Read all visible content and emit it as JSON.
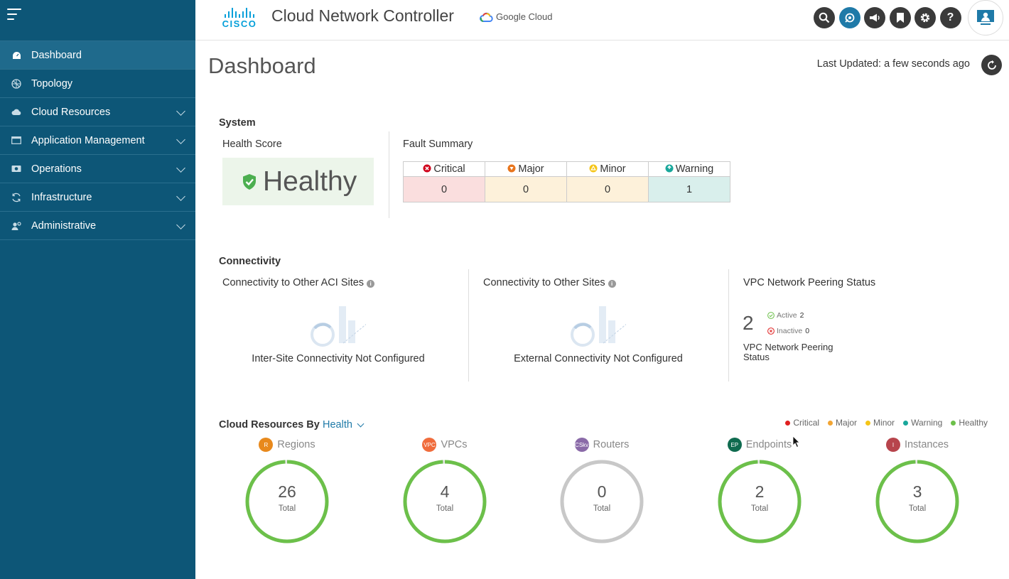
{
  "app": {
    "title": "Cloud Network Controller",
    "vendor": "CISCO",
    "cloud_provider": "Google Cloud"
  },
  "sidebar": {
    "items": [
      {
        "label": "Dashboard",
        "icon": "dashboard-icon",
        "active": true,
        "expandable": false
      },
      {
        "label": "Topology",
        "icon": "topology-icon",
        "active": false,
        "expandable": false
      },
      {
        "label": "Cloud Resources",
        "icon": "cloud-icon",
        "active": false,
        "expandable": true
      },
      {
        "label": "Application Management",
        "icon": "app-management-icon",
        "active": false,
        "expandable": true
      },
      {
        "label": "Operations",
        "icon": "operations-icon",
        "active": false,
        "expandable": true
      },
      {
        "label": "Infrastructure",
        "icon": "infrastructure-icon",
        "active": false,
        "expandable": true
      },
      {
        "label": "Administrative",
        "icon": "admin-icon",
        "active": false,
        "expandable": true
      }
    ]
  },
  "header": {
    "icons": [
      "search-icon",
      "intent-icon",
      "announcements-icon",
      "bookmark-icon",
      "settings-icon",
      "help-icon",
      "user-avatar-icon"
    ],
    "help_glyph": "?"
  },
  "main": {
    "title": "Dashboard",
    "last_updated": "Last Updated: a few seconds ago"
  },
  "system": {
    "heading": "System",
    "health_label": "Health Score",
    "health_value": "Healthy",
    "fault_label": "Fault Summary",
    "faults": [
      {
        "label": "Critical",
        "value": "0",
        "color": "#d0021b",
        "bg": "#fadede"
      },
      {
        "label": "Major",
        "value": "0",
        "color": "#e8741c",
        "bg": "#fdf1da"
      },
      {
        "label": "Minor",
        "value": "0",
        "color": "#f5c518",
        "bg": "#fdf1da"
      },
      {
        "label": "Warning",
        "value": "1",
        "color": "#19a79b",
        "bg": "#d9efec"
      }
    ]
  },
  "connectivity": {
    "heading": "Connectivity",
    "aci_label": "Connectivity to Other ACI Sites",
    "aci_empty": "Inter-Site Connectivity Not Configured",
    "other_label": "Connectivity to Other Sites",
    "other_empty": "External Connectivity Not Configured",
    "vpc_label": "VPC Network Peering Status",
    "vpc_total": "2",
    "vpc_active_label": "Active",
    "vpc_active_value": "2",
    "vpc_inactive_label": "Inactive",
    "vpc_inactive_value": "0",
    "vpc_caption": "VPC Network Peering Status"
  },
  "resources": {
    "heading": "Cloud Resources By",
    "filter": "Health",
    "legend": [
      {
        "label": "Critical",
        "color": "#e02020"
      },
      {
        "label": "Major",
        "color": "#f2a533"
      },
      {
        "label": "Minor",
        "color": "#f5c518"
      },
      {
        "label": "Warning",
        "color": "#19a79b"
      },
      {
        "label": "Healthy",
        "color": "#6cc04a"
      }
    ],
    "total_label": "Total",
    "items": [
      {
        "label": "Regions",
        "badge": "R",
        "badge_color": "#e8891c",
        "total": "26",
        "health_fraction": 1.0
      },
      {
        "label": "VPCs",
        "badge": "VPC",
        "badge_color": "#f06c3c",
        "total": "4",
        "health_fraction": 1.0
      },
      {
        "label": "Routers",
        "badge": "CSkv",
        "badge_color": "#8a6aa8",
        "total": "0",
        "health_fraction": 0.0
      },
      {
        "label": "Endpoints",
        "badge": "EP",
        "badge_color": "#0f6b4f",
        "total": "2",
        "health_fraction": 1.0
      },
      {
        "label": "Instances",
        "badge": "I",
        "badge_color": "#b7444c",
        "total": "3",
        "health_fraction": 1.0
      }
    ]
  }
}
